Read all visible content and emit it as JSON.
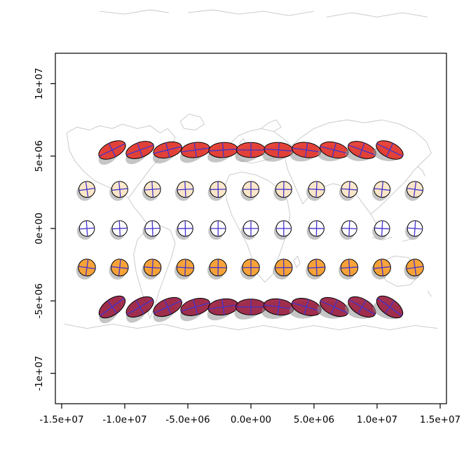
{
  "figure": {
    "background": "#ffffff",
    "description": "R plot: map-projection distortion ellipses (Tissot-style) over light gray world coastlines"
  },
  "chart_data": {
    "type": "scatter",
    "subtype": "distortion-ellipse-map",
    "title": "",
    "xlabel": "",
    "ylabel": "",
    "grid": false,
    "legend": "none",
    "xlim": [
      -15500000,
      15500000
    ],
    "ylim": [
      -12100000,
      12100000
    ],
    "x_ticks": {
      "values": [
        -15000000,
        -10000000,
        -5000000,
        0,
        5000000,
        10000000,
        15000000
      ],
      "labels": [
        "-1.5e+07",
        "-1.0e+07",
        "-5.0e+06",
        "0.0e+00",
        "5.0e+06",
        "1.0e+07",
        "1.5e+07"
      ]
    },
    "y_ticks": {
      "values": [
        -10000000,
        -5000000,
        0,
        5000000,
        10000000
      ],
      "labels": [
        "-1e+07",
        "-5e+06",
        "0e+00",
        "5e+06",
        "1e+07"
      ]
    },
    "style": {
      "box_stroke": "#000000",
      "tick_label_color": "#000000",
      "tick_font_px": 13.5,
      "cross_stroke": "#4433cc",
      "cross_width": 1.3,
      "outline_stroke": "#000000",
      "outline_width": 1.0,
      "shadow_fill": "rgba(150,150,150,0.55)",
      "shadow_dx": -0.18,
      "shadow_dy": -0.22,
      "shadow_rot_offset": -20
    },
    "ellipse_rows": [
      {
        "name": "lat-60N",
        "y": 5.42,
        "rx": 1.15,
        "ry": 0.52,
        "fill": "rgba(228,50,40,0.9)",
        "x": [
          -11,
          -8.8,
          -6.6,
          -4.4,
          -2.2,
          0,
          2.2,
          4.4,
          6.6,
          8.8,
          11
        ],
        "rot": [
          -26,
          -20,
          -14,
          -8,
          -4,
          0,
          4,
          8,
          14,
          20,
          26
        ]
      },
      {
        "name": "lat-30N",
        "y": 2.7,
        "rx": 0.64,
        "ry": 0.55,
        "fill": "rgba(253,232,200,0.95)",
        "x": [
          -13,
          -10.4,
          -7.8,
          -5.2,
          -2.6,
          0,
          2.6,
          5.2,
          7.8,
          10.4,
          13
        ],
        "rot": [
          -8,
          -6,
          -4,
          -3,
          -1,
          0,
          1,
          3,
          4,
          6,
          8
        ]
      },
      {
        "name": "equator",
        "y": 0,
        "rx": 0.6,
        "ry": 0.54,
        "fill": "rgba(255,255,255,0.95)",
        "x": [
          -13,
          -10.4,
          -7.8,
          -5.2,
          -2.6,
          0,
          2.6,
          5.2,
          7.8,
          10.4,
          13
        ],
        "rot": [
          -4,
          -3,
          -2,
          -1,
          0,
          0,
          0,
          1,
          2,
          3,
          4
        ]
      },
      {
        "name": "lat-30S",
        "y": -2.7,
        "rx": 0.68,
        "ry": 0.58,
        "fill": "rgba(249,160,48,0.95)",
        "x": [
          -13,
          -10.4,
          -7.8,
          -5.2,
          -2.6,
          0,
          2.6,
          5.2,
          7.8,
          10.4,
          13
        ],
        "rot": [
          8,
          6,
          4,
          3,
          1,
          0,
          -1,
          -3,
          -4,
          -6,
          -8
        ]
      },
      {
        "name": "lat-60S",
        "y": -5.42,
        "rx": 1.2,
        "ry": 0.55,
        "fill": "rgba(155,32,65,0.92)",
        "x": [
          -11,
          -8.8,
          -6.6,
          -4.4,
          -2.2,
          0,
          2.2,
          4.4,
          6.6,
          8.8,
          11
        ],
        "rot": [
          -36,
          -30,
          -24,
          -16,
          -8,
          0,
          8,
          16,
          24,
          30,
          36
        ]
      }
    ],
    "basemap": {
      "stroke": "#c6c6c6",
      "stroke_width": 0.9,
      "polylines": [
        [
          [
            -14.6,
            6.6
          ],
          [
            -13.8,
            7.0
          ],
          [
            -12.8,
            6.8
          ],
          [
            -12.0,
            7.1
          ],
          [
            -11.0,
            6.9
          ],
          [
            -10.2,
            7.2
          ],
          [
            -9.0,
            6.9
          ],
          [
            -8.0,
            7.1
          ],
          [
            -7.2,
            6.6
          ],
          [
            -6.6,
            6.9
          ],
          [
            -6.0,
            6.3
          ],
          [
            -6.3,
            5.7
          ],
          [
            -7.0,
            5.3
          ],
          [
            -7.4,
            4.7
          ],
          [
            -8.0,
            4.1
          ],
          [
            -8.6,
            3.4
          ],
          [
            -9.2,
            2.7
          ],
          [
            -9.7,
            2.1
          ],
          [
            -10.4,
            2.5
          ],
          [
            -11.4,
            2.9
          ],
          [
            -12.4,
            3.3
          ],
          [
            -13.2,
            3.9
          ],
          [
            -13.9,
            4.6
          ],
          [
            -14.4,
            5.4
          ],
          [
            -14.6,
            6.6
          ]
        ],
        [
          [
            -9.7,
            2.1
          ],
          [
            -9.3,
            1.5
          ],
          [
            -8.8,
            1.0
          ],
          [
            -8.3,
            0.4
          ],
          [
            -8.0,
            0.0
          ]
        ],
        [
          [
            -8.0,
            0.0
          ],
          [
            -7.2,
            0.2
          ],
          [
            -6.4,
            -0.1
          ],
          [
            -6.0,
            -1.0
          ],
          [
            -6.3,
            -2.0
          ],
          [
            -6.8,
            -3.2
          ],
          [
            -7.3,
            -4.4
          ],
          [
            -7.7,
            -5.6
          ],
          [
            -8.0,
            -6.2
          ],
          [
            -8.3,
            -5.4
          ],
          [
            -8.7,
            -4.2
          ],
          [
            -9.1,
            -3.0
          ],
          [
            -9.3,
            -1.8
          ],
          [
            -9.0,
            -0.8
          ],
          [
            -8.4,
            -0.2
          ],
          [
            -8.0,
            0.0
          ]
        ],
        [
          [
            -5.6,
            7.4
          ],
          [
            -4.9,
            7.9
          ],
          [
            -4.0,
            7.7
          ],
          [
            -3.7,
            7.2
          ],
          [
            -4.4,
            6.8
          ],
          [
            -5.3,
            6.9
          ],
          [
            -5.6,
            7.4
          ]
        ],
        [
          [
            -1.6,
            5.9
          ],
          [
            -1.0,
            6.4
          ],
          [
            -0.2,
            6.7
          ],
          [
            0.8,
            6.9
          ],
          [
            1.8,
            6.7
          ],
          [
            2.6,
            6.2
          ],
          [
            3.2,
            5.7
          ],
          [
            2.7,
            5.2
          ],
          [
            1.9,
            4.9
          ],
          [
            1.0,
            4.7
          ],
          [
            0.1,
            4.5
          ],
          [
            -0.8,
            4.7
          ],
          [
            -1.4,
            5.3
          ],
          [
            -1.6,
            5.9
          ]
        ],
        [
          [
            -0.9,
            5.9
          ],
          [
            -0.6,
            6.2
          ],
          [
            -0.4,
            5.9
          ],
          [
            -0.7,
            5.7
          ],
          [
            -0.9,
            5.9
          ]
        ],
        [
          [
            0.8,
            6.9
          ],
          [
            1.4,
            7.3
          ],
          [
            2.0,
            7.5
          ],
          [
            2.4,
            7.0
          ],
          [
            1.8,
            6.7
          ]
        ],
        [
          [
            -1.7,
            3.7
          ],
          [
            -0.7,
            3.9
          ],
          [
            0.4,
            3.7
          ],
          [
            1.4,
            3.3
          ],
          [
            2.3,
            2.7
          ],
          [
            2.9,
            1.9
          ],
          [
            3.1,
            0.9
          ],
          [
            2.9,
            -0.1
          ],
          [
            2.5,
            -1.2
          ],
          [
            2.1,
            -2.2
          ],
          [
            1.7,
            -3.2
          ],
          [
            1.1,
            -3.7
          ],
          [
            0.5,
            -3.1
          ],
          [
            0.1,
            -2.1
          ],
          [
            -0.3,
            -1.1
          ],
          [
            -0.9,
            -0.1
          ],
          [
            -1.5,
            0.9
          ],
          [
            -1.9,
            1.9
          ],
          [
            -2.1,
            2.9
          ],
          [
            -1.7,
            3.7
          ]
        ],
        [
          [
            3.2,
            5.7
          ],
          [
            4.0,
            6.3
          ],
          [
            5.0,
            6.9
          ],
          [
            6.2,
            7.3
          ],
          [
            7.6,
            7.5
          ],
          [
            9.0,
            7.3
          ],
          [
            10.4,
            7.5
          ],
          [
            11.8,
            7.2
          ],
          [
            13.0,
            6.7
          ],
          [
            13.9,
            6.0
          ],
          [
            14.3,
            5.2
          ],
          [
            13.6,
            4.6
          ],
          [
            12.9,
            4.0
          ],
          [
            12.3,
            3.3
          ],
          [
            11.6,
            2.7
          ],
          [
            10.9,
            2.1
          ],
          [
            10.2,
            1.5
          ],
          [
            9.5,
            1.0
          ],
          [
            8.9,
            1.7
          ],
          [
            8.3,
            2.4
          ],
          [
            7.5,
            2.9
          ],
          [
            6.5,
            3.1
          ],
          [
            5.5,
            2.8
          ],
          [
            4.7,
            2.3
          ],
          [
            4.1,
            1.7
          ],
          [
            3.7,
            2.5
          ],
          [
            3.3,
            3.3
          ],
          [
            2.9,
            4.1
          ],
          [
            2.7,
            4.9
          ],
          [
            3.2,
            5.7
          ]
        ],
        [
          [
            9.5,
            1.0
          ],
          [
            9.9,
            0.4
          ],
          [
            10.3,
            -0.2
          ]
        ],
        [
          [
            9.6,
            -0.6
          ],
          [
            10.4,
            -0.8
          ],
          [
            11.2,
            -0.6
          ]
        ],
        [
          [
            12.0,
            -0.9
          ],
          [
            12.8,
            -0.7
          ]
        ],
        [
          [
            3.4,
            -2.2
          ],
          [
            3.7,
            -1.9
          ],
          [
            3.9,
            -2.4
          ],
          [
            3.6,
            -2.7
          ],
          [
            3.4,
            -2.2
          ]
        ],
        [
          [
            13.2,
            4.3
          ],
          [
            13.6,
            4.0
          ],
          [
            13.8,
            3.6
          ]
        ],
        [
          [
            10.6,
            -2.2
          ],
          [
            11.4,
            -1.9
          ],
          [
            12.4,
            -2.0
          ],
          [
            13.2,
            -2.5
          ],
          [
            13.3,
            -3.3
          ],
          [
            12.6,
            -3.9
          ],
          [
            11.6,
            -4.0
          ],
          [
            10.7,
            -3.6
          ],
          [
            10.3,
            -2.9
          ],
          [
            10.6,
            -2.2
          ]
        ],
        [
          [
            14.0,
            -4.3
          ],
          [
            14.3,
            -4.7
          ]
        ],
        [
          [
            -14.8,
            -6.6
          ],
          [
            -13.0,
            -6.9
          ],
          [
            -11.0,
            -6.6
          ],
          [
            -9.0,
            -6.9
          ],
          [
            -7.0,
            -6.6
          ],
          [
            -5.0,
            -7.0
          ],
          [
            -3.0,
            -6.7
          ],
          [
            -1.0,
            -7.0
          ],
          [
            1.0,
            -6.7
          ],
          [
            3.0,
            -7.0
          ],
          [
            5.0,
            -6.7
          ],
          [
            7.0,
            -7.0
          ],
          [
            9.0,
            -6.7
          ],
          [
            11.0,
            -7.0
          ],
          [
            13.0,
            -6.7
          ],
          [
            14.8,
            -6.9
          ]
        ],
        [
          [
            -12.0,
            15.0
          ],
          [
            -10.0,
            14.8
          ],
          [
            -8.0,
            15.1
          ],
          [
            -6.5,
            14.9
          ]
        ],
        [
          [
            -5.0,
            14.9
          ],
          [
            -3.0,
            15.1
          ],
          [
            -1.0,
            14.8
          ],
          [
            1.0,
            15.0
          ],
          [
            3.0,
            14.7
          ],
          [
            5.0,
            15.0
          ]
        ],
        [
          [
            6.0,
            14.6
          ],
          [
            8.0,
            14.9
          ],
          [
            10.0,
            14.6
          ],
          [
            12.0,
            14.9
          ],
          [
            14.0,
            14.6
          ]
        ]
      ]
    }
  }
}
